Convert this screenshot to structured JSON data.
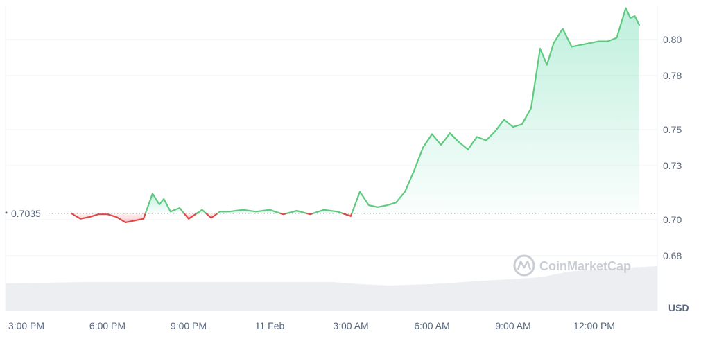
{
  "chart_data": {
    "type": "area",
    "y_unit": "USD",
    "reference_value": 0.7035,
    "reference_label": "0.7035",
    "ylim": [
      0.67,
      0.823
    ],
    "y_ticks": [
      0.68,
      0.7,
      0.73,
      0.75,
      0.78,
      0.8
    ],
    "y_tick_labels": [
      "0.68",
      "0.70",
      "0.73",
      "0.75",
      "0.78",
      "0.80"
    ],
    "x_ticks": [
      "3:00 PM",
      "6:00 PM",
      "9:00 PM",
      "11 Feb",
      "3:00 AM",
      "6:00 AM",
      "9:00 AM",
      "12:00 PM"
    ],
    "x_tick_times": [
      "10 Feb 15:00",
      "10 Feb 18:00",
      "10 Feb 21:00",
      "11 Feb 00:00",
      "11 Feb 03:00",
      "11 Feb 06:00",
      "11 Feb 09:00",
      "11 Feb 12:00"
    ],
    "grid": true,
    "colors": {
      "up": "#16c784",
      "down": "#ea3943",
      "line_up": "#5ec97f",
      "line_down": "#e04848",
      "volume": "#eceef2"
    },
    "watermark": "CoinMarketCap",
    "series": [
      {
        "x": [
          "10 Feb 16:40",
          "10 Feb 17:00",
          "10 Feb 17:20",
          "10 Feb 17:40",
          "10 Feb 18:00",
          "10 Feb 18:20",
          "10 Feb 18:40",
          "10 Feb 19:00",
          "10 Feb 19:20",
          "10 Feb 19:40",
          "10 Feb 19:55",
          "10 Feb 20:05",
          "10 Feb 20:20",
          "10 Feb 20:40",
          "10 Feb 21:00",
          "10 Feb 21:30",
          "10 Feb 21:50",
          "10 Feb 22:10",
          "10 Feb 22:30",
          "10 Feb 23:00",
          "10 Feb 23:30",
          "11 Feb 00:00",
          "11 Feb 00:30",
          "11 Feb 01:00",
          "11 Feb 01:30",
          "11 Feb 02:00",
          "11 Feb 02:30",
          "11 Feb 03:00",
          "11 Feb 03:20",
          "11 Feb 03:40",
          "11 Feb 04:00",
          "11 Feb 04:20",
          "11 Feb 04:40",
          "11 Feb 05:00",
          "11 Feb 05:20",
          "11 Feb 05:40",
          "11 Feb 06:00",
          "11 Feb 06:20",
          "11 Feb 06:40",
          "11 Feb 07:00",
          "11 Feb 07:20",
          "11 Feb 07:40",
          "11 Feb 08:00",
          "11 Feb 08:20",
          "11 Feb 08:40",
          "11 Feb 09:00",
          "11 Feb 09:20",
          "11 Feb 09:40",
          "11 Feb 10:00",
          "11 Feb 10:15",
          "11 Feb 10:30",
          "11 Feb 10:50",
          "11 Feb 11:10",
          "11 Feb 11:30",
          "11 Feb 11:50",
          "11 Feb 12:10",
          "11 Feb 12:30",
          "11 Feb 12:50",
          "11 Feb 13:10",
          "11 Feb 13:20",
          "11 Feb 13:30",
          "11 Feb 13:40"
        ],
        "values": [
          0.7035,
          0.7005,
          0.7015,
          0.703,
          0.703,
          0.7015,
          0.6985,
          0.6995,
          0.7005,
          0.7145,
          0.7085,
          0.7115,
          0.7045,
          0.7065,
          0.7005,
          0.7055,
          0.701,
          0.7045,
          0.7045,
          0.7055,
          0.7045,
          0.7055,
          0.703,
          0.705,
          0.703,
          0.7055,
          0.7045,
          0.702,
          0.7155,
          0.708,
          0.707,
          0.708,
          0.7095,
          0.7155,
          0.727,
          0.74,
          0.7475,
          0.7415,
          0.748,
          0.743,
          0.739,
          0.746,
          0.744,
          0.749,
          0.7555,
          0.7515,
          0.753,
          0.762,
          0.795,
          0.786,
          0.798,
          0.806,
          0.796,
          0.797,
          0.798,
          0.799,
          0.799,
          0.801,
          0.8175,
          0.812,
          0.813,
          0.808
        ]
      }
    ]
  }
}
